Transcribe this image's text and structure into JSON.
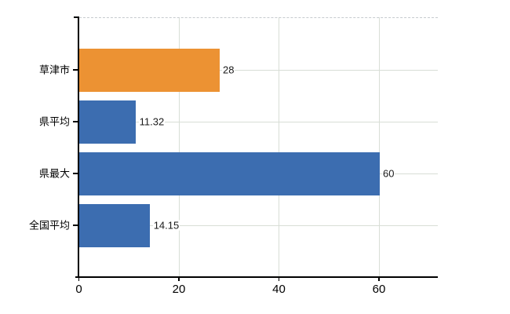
{
  "chart_data": {
    "type": "bar",
    "orientation": "horizontal",
    "title": "",
    "xlabel": "",
    "ylabel": "",
    "categories": [
      "草津市",
      "県平均",
      "県最大",
      "全国平均"
    ],
    "values": [
      28,
      11.32,
      60,
      14.15
    ],
    "value_labels": [
      "28",
      "11.32",
      "60",
      "14.15"
    ],
    "highlighted_category": "草津市",
    "bar_colors": [
      "#EC9233",
      "#3C6DB0",
      "#3C6DB0",
      "#3C6DB0"
    ],
    "x_tick_labels": [
      "0",
      "20",
      "40",
      "60"
    ],
    "x_tick_values": [
      0,
      20,
      40,
      60
    ],
    "xlim": [
      0,
      71.8
    ],
    "grid": true,
    "legend": false
  },
  "colors": {
    "highlight_bar": "#EC9233",
    "default_bar": "#3C6DB0",
    "gridline": "#d8ded6",
    "plot_border_dashed": "#c6cbce",
    "axis": "#000000",
    "value_text": "#1a1a1a",
    "background": "#ffffff"
  }
}
